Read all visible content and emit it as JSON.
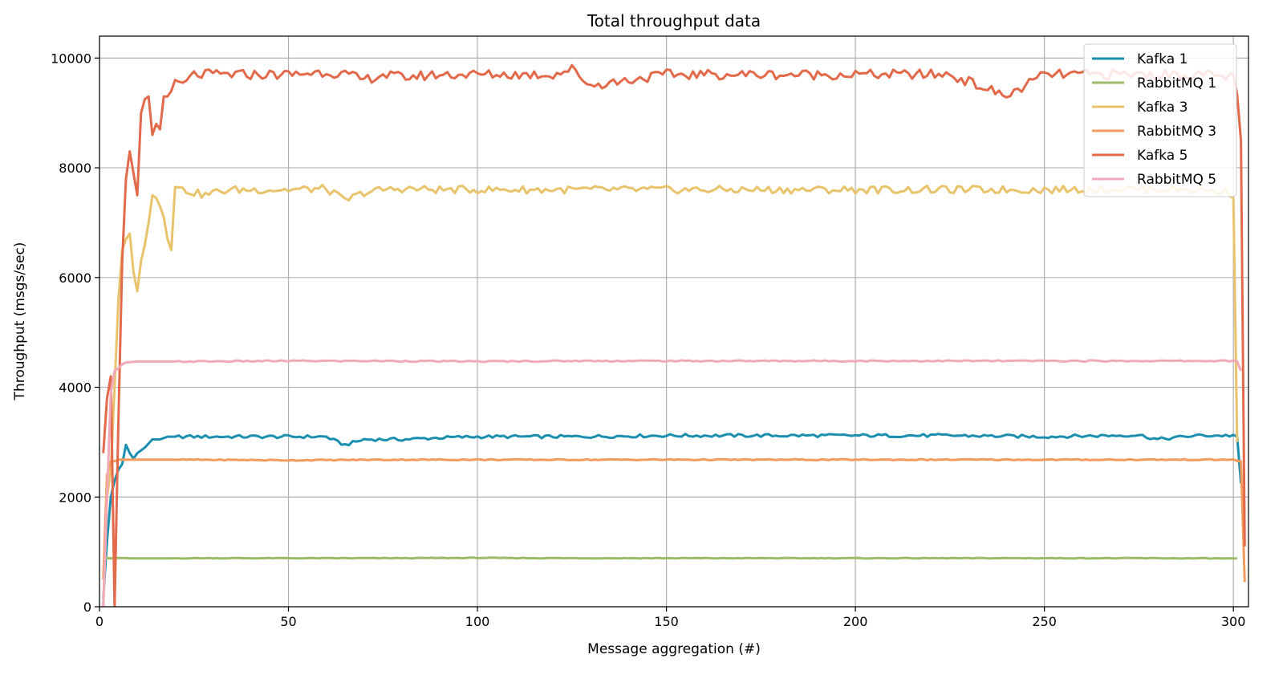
{
  "chart_data": {
    "type": "line",
    "title": "Total throughput data",
    "xlabel": "Message aggregation (#)",
    "ylabel": "Throughput (msgs/sec)",
    "xlim": [
      0,
      304
    ],
    "ylim": [
      0,
      10400
    ],
    "xticks": [
      0,
      50,
      100,
      150,
      200,
      250,
      300
    ],
    "yticks": [
      0,
      2000,
      4000,
      6000,
      8000,
      10000
    ],
    "grid": true,
    "legend_position": "top-right",
    "series": [
      {
        "name": "Kafka 1",
        "color": "#1a8fb0",
        "x": [
          1,
          2,
          3,
          4,
          5,
          6,
          7,
          8,
          9,
          10,
          12,
          14,
          16,
          18,
          20,
          25,
          30,
          40,
          50,
          60,
          63,
          65,
          70,
          80,
          90,
          100,
          125,
          150,
          175,
          200,
          225,
          250,
          275,
          280,
          290,
          299,
          300,
          301,
          302
        ],
        "y": [
          150,
          1200,
          2000,
          2300,
          2500,
          2600,
          2950,
          2800,
          2700,
          2800,
          2900,
          3050,
          3050,
          3100,
          3100,
          3100,
          3100,
          3100,
          3100,
          3100,
          3000,
          2950,
          3050,
          3050,
          3080,
          3100,
          3100,
          3120,
          3120,
          3120,
          3120,
          3100,
          3130,
          3050,
          3120,
          3120,
          3130,
          3100,
          2250
        ]
      },
      {
        "name": "RabbitMQ 1",
        "color": "#9bbb6a",
        "x": [
          1,
          2,
          3,
          5,
          10,
          25,
          50,
          75,
          100,
          125,
          150,
          175,
          200,
          225,
          250,
          275,
          300,
          301
        ],
        "y": [
          880,
          890,
          880,
          890,
          880,
          885,
          885,
          885,
          890,
          885,
          885,
          885,
          885,
          885,
          885,
          885,
          880,
          880
        ]
      },
      {
        "name": "Kafka 3",
        "color": "#e8c36b",
        "x": [
          1,
          2,
          3,
          4,
          5,
          6,
          7,
          8,
          9,
          10,
          11,
          12,
          13,
          14,
          15,
          16,
          17,
          18,
          19,
          20,
          22,
          25,
          28,
          30,
          35,
          40,
          50,
          60,
          65,
          70,
          75,
          80,
          90,
          100,
          125,
          150,
          175,
          200,
          225,
          250,
          275,
          290,
          299,
          300,
          301
        ],
        "y": [
          0,
          2000,
          2500,
          4000,
          5600,
          6500,
          6700,
          6800,
          6100,
          5750,
          6300,
          6600,
          7000,
          7500,
          7450,
          7300,
          7100,
          6700,
          6500,
          7650,
          7600,
          7550,
          7500,
          7550,
          7600,
          7600,
          7600,
          7620,
          7400,
          7550,
          7600,
          7620,
          7600,
          7600,
          7600,
          7600,
          7600,
          7600,
          7600,
          7600,
          7620,
          7600,
          7550,
          7450,
          3000
        ]
      },
      {
        "name": "RabbitMQ 3",
        "color": "#f29b5c",
        "x": [
          1,
          2,
          3,
          4,
          5,
          10,
          25,
          50,
          75,
          100,
          125,
          150,
          175,
          200,
          225,
          250,
          275,
          300,
          302,
          303
        ],
        "y": [
          500,
          2400,
          2650,
          2650,
          2680,
          2680,
          2680,
          2670,
          2680,
          2680,
          2680,
          2680,
          2680,
          2680,
          2680,
          2680,
          2680,
          2680,
          2650,
          450
        ]
      },
      {
        "name": "Kafka 5",
        "color": "#e2694a",
        "x": [
          1,
          2,
          3,
          4,
          5,
          6,
          7,
          8,
          9,
          10,
          11,
          12,
          13,
          14,
          15,
          16,
          17,
          18,
          19,
          20,
          22,
          25,
          30,
          35,
          40,
          50,
          60,
          65,
          70,
          75,
          80,
          90,
          100,
          120,
          125,
          130,
          150,
          175,
          200,
          225,
          240,
          250,
          275,
          290,
          300,
          301,
          302,
          303
        ],
        "y": [
          2800,
          3800,
          4200,
          0,
          3400,
          6300,
          7800,
          8300,
          7900,
          7500,
          9000,
          9250,
          9300,
          8600,
          8800,
          8700,
          9300,
          9300,
          9400,
          9600,
          9500,
          9700,
          9700,
          9700,
          9700,
          9700,
          9750,
          9700,
          9600,
          9700,
          9650,
          9700,
          9700,
          9700,
          9800,
          9500,
          9700,
          9700,
          9700,
          9700,
          9300,
          9700,
          9700,
          9700,
          9650,
          9400,
          8500,
          1100
        ]
      },
      {
        "name": "RabbitMQ 5",
        "color": "#f2a9ba",
        "x": [
          1,
          2,
          3,
          4,
          5,
          6,
          7,
          10,
          25,
          50,
          75,
          100,
          125,
          150,
          175,
          200,
          225,
          250,
          275,
          300,
          301,
          302
        ],
        "y": [
          0,
          2000,
          3900,
          4300,
          4350,
          4420,
          4450,
          4470,
          4470,
          4480,
          4480,
          4470,
          4480,
          4480,
          4480,
          4480,
          4480,
          4480,
          4480,
          4480,
          4470,
          4300
        ]
      }
    ]
  }
}
